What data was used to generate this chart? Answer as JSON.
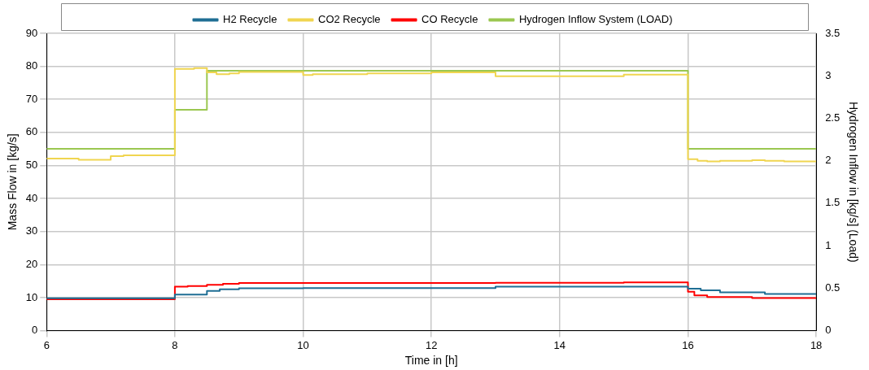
{
  "chart_data": {
    "type": "step",
    "xlabel": "Time in [h]",
    "ylabel": "Mass Flow in [kg/s]",
    "y2label": "Hydrogen Inflow in [kg/s] (Load)",
    "xlim": [
      6,
      18
    ],
    "xticks": [
      6,
      8,
      10,
      12,
      14,
      16,
      18
    ],
    "ylim": [
      0,
      90
    ],
    "yticks": [
      0,
      10,
      20,
      30,
      40,
      50,
      60,
      70,
      80,
      90
    ],
    "y2lim": [
      0,
      3.5
    ],
    "y2ticks": [
      0,
      0.5,
      1,
      1.5,
      2,
      2.5,
      3,
      3.5
    ],
    "grid": true,
    "legend": "top",
    "marker": "none",
    "line_style": "solid",
    "series": [
      {
        "name": "H2 Recycle",
        "color": "#1f6e94",
        "x": [
          6,
          8,
          8.5,
          8.7,
          9,
          10,
          13,
          16,
          16.2,
          16.5,
          17.2,
          18
        ],
        "values": [
          9.8,
          10.9,
          12,
          12.5,
          12.8,
          12.9,
          13.3,
          12.7,
          12.2,
          11.6,
          11.1,
          11.1
        ]
      },
      {
        "name": "CO2 Recycle",
        "color": "#f0d550",
        "x": [
          6,
          6.5,
          7,
          7.2,
          8,
          8.3,
          8.5,
          8.65,
          8.85,
          9,
          10,
          10.15,
          11,
          12,
          13,
          15,
          16,
          16.15,
          16.3,
          16.5,
          17,
          17.2,
          17.5,
          18
        ],
        "values": [
          52.1,
          51.7,
          52.8,
          53.1,
          79.2,
          79.5,
          78.2,
          77.6,
          77.9,
          78.3,
          77.4,
          77.6,
          77.9,
          78.2,
          77.0,
          77.5,
          51.9,
          51.4,
          51.2,
          51.4,
          51.6,
          51.4,
          51.2,
          51.2
        ]
      },
      {
        "name": "CO Recycle",
        "color": "#ff0000",
        "x": [
          6,
          8,
          8.2,
          8.5,
          8.75,
          9,
          10,
          13,
          15,
          16,
          16.1,
          16.3,
          17,
          18
        ],
        "values": [
          9.5,
          13.3,
          13.5,
          13.9,
          14.2,
          14.4,
          14.4,
          14.5,
          14.6,
          11.8,
          10.7,
          10.2,
          9.9,
          9.9
        ]
      },
      {
        "name": "Hydrogen Inflow System (LOAD)",
        "color": "#9bc750",
        "axis": "y2",
        "x": [
          6,
          8,
          8.5,
          16,
          18
        ],
        "values": [
          2.14,
          2.6,
          3.06,
          2.14,
          2.14
        ]
      }
    ]
  }
}
